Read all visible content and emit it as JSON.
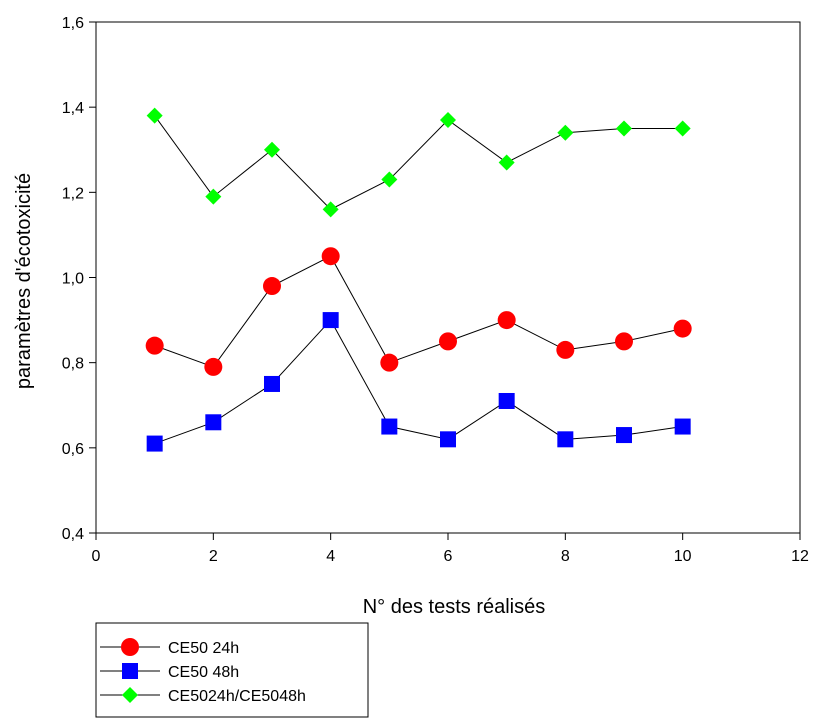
{
  "chart_data": {
    "type": "line",
    "title": "",
    "xlabel": "N° des tests réalisés",
    "ylabel": "paramètres d'écotoxicité",
    "xlim": [
      0,
      12
    ],
    "ylim": [
      0.4,
      1.6
    ],
    "xticks": [
      0,
      2,
      4,
      6,
      8,
      10,
      12
    ],
    "xtick_labels": [
      "0",
      "2",
      "4",
      "6",
      "8",
      "10",
      "12"
    ],
    "yticks": [
      0.4,
      0.6,
      0.8,
      1.0,
      1.2,
      1.4,
      1.6
    ],
    "ytick_labels": [
      "0,4",
      "0,6",
      "0,8",
      "1,0",
      "1,2",
      "1,4",
      "1,6"
    ],
    "grid": false,
    "legend_position": "bottom-left",
    "x": [
      1,
      2,
      3,
      4,
      5,
      6,
      7,
      8,
      9,
      10
    ],
    "series": [
      {
        "name": "CE50 24h",
        "marker": "circle",
        "color": "#ff0000",
        "values": [
          0.84,
          0.79,
          0.98,
          1.05,
          0.8,
          0.85,
          0.9,
          0.83,
          0.85,
          0.88
        ]
      },
      {
        "name": "CE50 48h",
        "marker": "square",
        "color": "#0000ff",
        "values": [
          0.61,
          0.66,
          0.75,
          0.9,
          0.65,
          0.62,
          0.71,
          0.62,
          0.63,
          0.65
        ]
      },
      {
        "name": "CE5024h/CE5048h",
        "marker": "diamond",
        "color": "#00ff00",
        "values": [
          1.38,
          1.19,
          1.3,
          1.16,
          1.23,
          1.37,
          1.27,
          1.34,
          1.35,
          1.35
        ]
      }
    ]
  }
}
